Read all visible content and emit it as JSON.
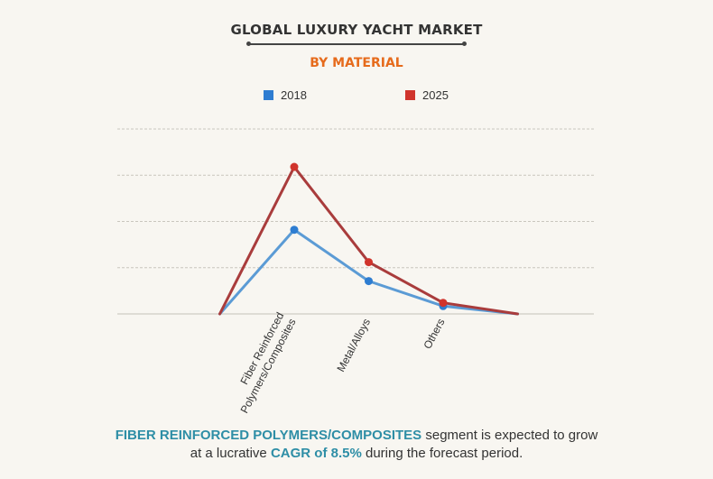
{
  "header": {
    "title": "GLOBAL LUXURY YACHT MARKET",
    "subtitle": "BY MATERIAL"
  },
  "legend": [
    {
      "label": "2018",
      "color": "#2e7dd1"
    },
    {
      "label": "2025",
      "color": "#d0342c"
    }
  ],
  "chart_data": {
    "type": "line",
    "categories": [
      "Fiber Reinforced Polymers/Composites",
      "Metal/Alloys",
      "Others"
    ],
    "tick_labels": [
      [
        "Fiber Reinforced",
        "Polymers/Composites"
      ],
      [
        "Metal/Alloys"
      ],
      [
        "Others"
      ]
    ],
    "series": [
      {
        "name": "2018",
        "color": "#2e7dd1",
        "line_color": "#5b9bd5",
        "values": [
          1.82,
          0.71,
          0.17
        ]
      },
      {
        "name": "2025",
        "color": "#d0342c",
        "line_color": "#a93c3c",
        "values": [
          3.18,
          1.12,
          0.24
        ]
      }
    ],
    "ylim": [
      0,
      4
    ],
    "grid": true,
    "y_tick_labels_shown": false,
    "line_starts_and_ends_at_baseline": true,
    "legend_position": "top"
  },
  "footer": {
    "highlight_segment": "FIBER REINFORCED POLYMERS/COMPOSITES",
    "text_1": " segment is expected to grow",
    "text_2": "at a lucrative ",
    "highlight_cagr": "CAGR of 8.5%",
    "text_3": " during the forecast period."
  }
}
